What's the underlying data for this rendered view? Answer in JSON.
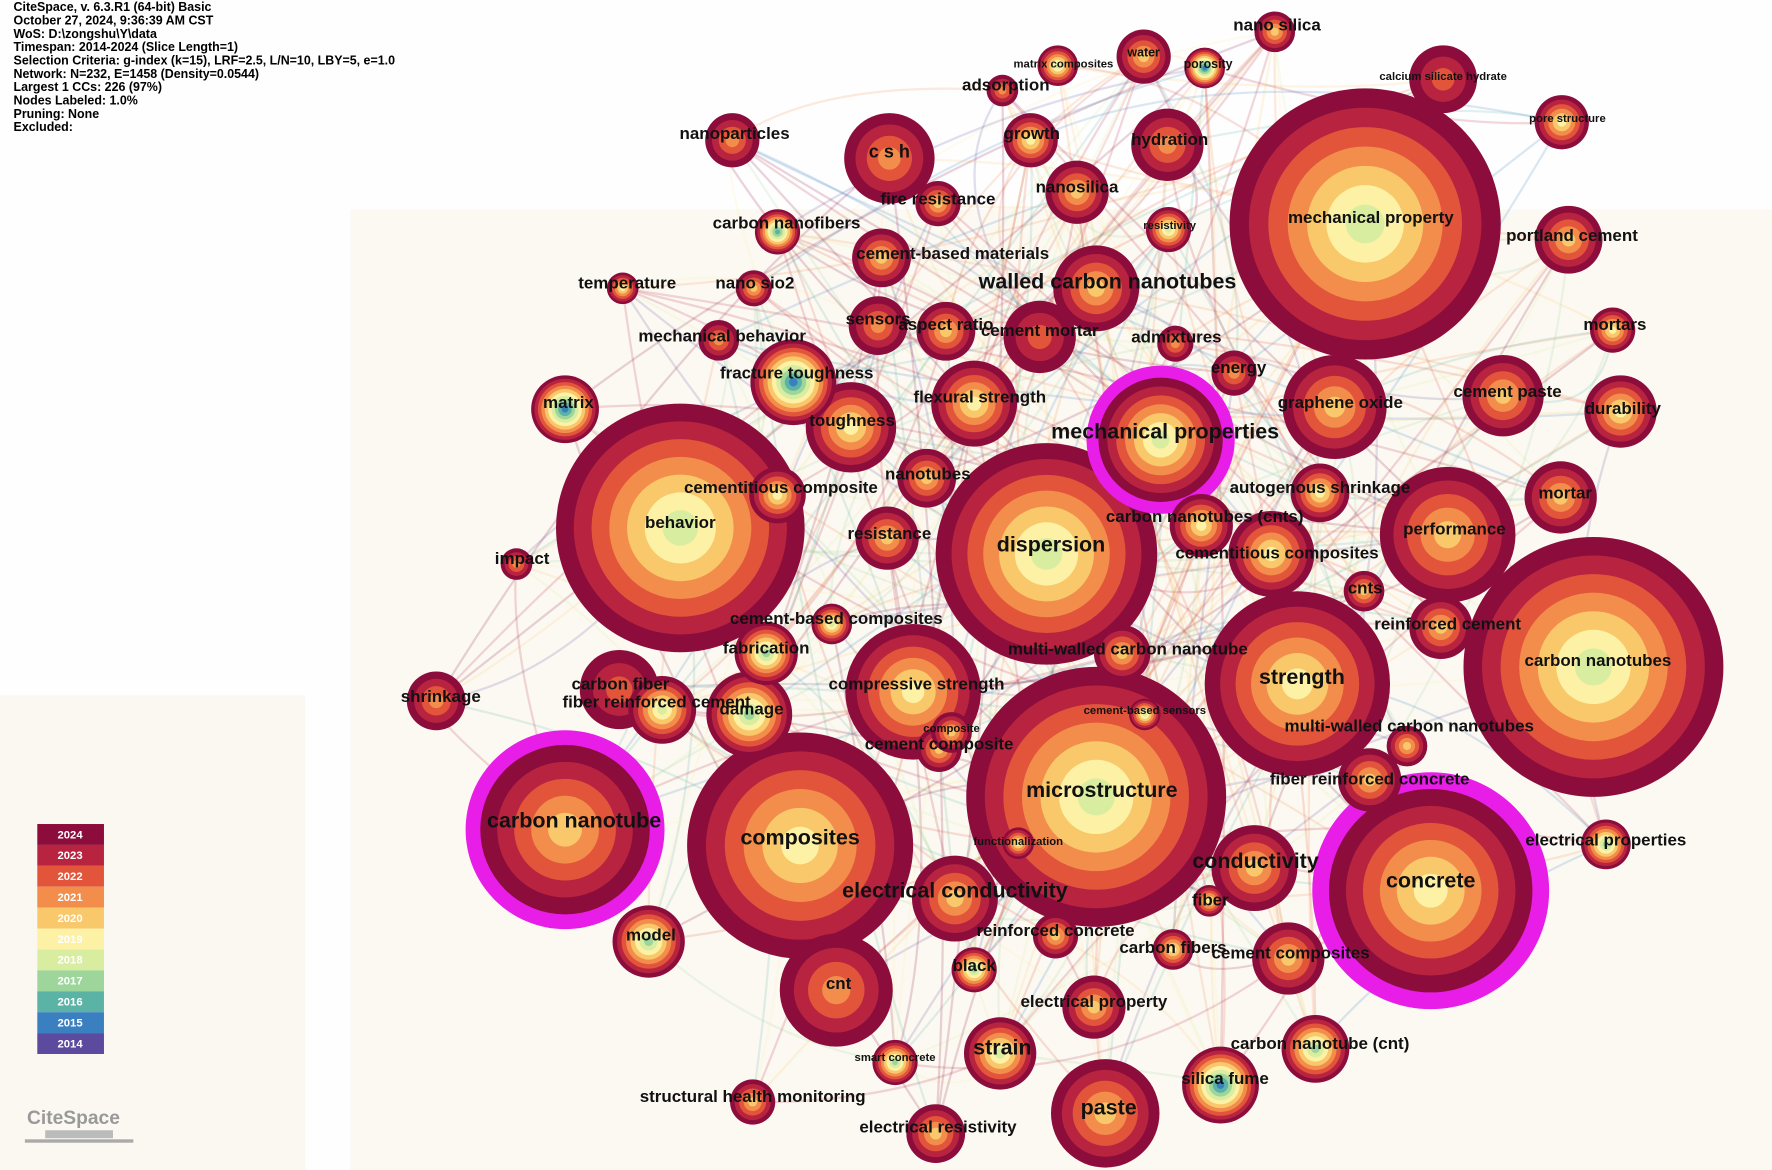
{
  "header": {
    "lines": [
      "CiteSpace, v. 6.3.R1 (64-bit) Basic",
      "October 27, 2024, 9:36:39 AM CST",
      "WoS: D:\\zongshu\\Y\\data",
      "Timespan: 2014-2024 (Slice Length=1)",
      "Selection Criteria: g-index (k=15), LRF=2.5, L/N=10, LBY=5, e=1.0",
      "Network: N=232, E=1458 (Density=0.0544)",
      "Largest 1 CCs: 226 (97%)",
      "Nodes Labeled: 1.0%",
      "Pruning: None",
      "Excluded:"
    ]
  },
  "legend": [
    {
      "year": "2024",
      "color": "#8c0d3c"
    },
    {
      "year": "2023",
      "color": "#b8243f"
    },
    {
      "year": "2022",
      "color": "#e2553a"
    },
    {
      "year": "2021",
      "color": "#f28d4c"
    },
    {
      "year": "2020",
      "color": "#f9c86b"
    },
    {
      "year": "2019",
      "color": "#fdf1a6"
    },
    {
      "year": "2018",
      "color": "#d9eda0"
    },
    {
      "year": "2017",
      "color": "#9dd59b"
    },
    {
      "year": "2016",
      "color": "#5bb3a5"
    },
    {
      "year": "2015",
      "color": "#3a7fc0"
    },
    {
      "year": "2014",
      "color": "#5b4a9e"
    }
  ],
  "logo": "CiteSpace",
  "nodes": [
    {
      "label": "nano silica"
    },
    {
      "label": "water"
    },
    {
      "label": "porosity"
    },
    {
      "label": "matrix composites"
    },
    {
      "label": "calcium silicate hydrate"
    },
    {
      "label": "adsorption"
    },
    {
      "label": "pore structure"
    },
    {
      "label": "nanoparticles"
    },
    {
      "label": "c s h"
    },
    {
      "label": "growth"
    },
    {
      "label": "hydration"
    },
    {
      "label": "mechanical property"
    },
    {
      "label": "fire resistance"
    },
    {
      "label": "nanosilica"
    },
    {
      "label": "carbon nanofibers"
    },
    {
      "label": "resistivity"
    },
    {
      "label": "portland cement"
    },
    {
      "label": "cement-based materials"
    },
    {
      "label": "walled carbon nanotubes"
    },
    {
      "label": "temperature"
    },
    {
      "label": "nano sio2"
    },
    {
      "label": "sensors"
    },
    {
      "label": "aspect ratio"
    },
    {
      "label": "cement mortar"
    },
    {
      "label": "admixtures"
    },
    {
      "label": "mortars"
    },
    {
      "label": "mechanical behavior"
    },
    {
      "label": "fracture toughness"
    },
    {
      "label": "energy"
    },
    {
      "label": "matrix"
    },
    {
      "label": "flexural strength"
    },
    {
      "label": "graphene oxide"
    },
    {
      "label": "cement paste"
    },
    {
      "label": "durability"
    },
    {
      "label": "mechanical properties"
    },
    {
      "label": "toughness"
    },
    {
      "label": "cementitious composite"
    },
    {
      "label": "behavior"
    },
    {
      "label": "nanotubes"
    },
    {
      "label": "autogenous shrinkage"
    },
    {
      "label": "mortar"
    },
    {
      "label": "carbon nanotubes (cnts)"
    },
    {
      "label": "performance"
    },
    {
      "label": "dispersion"
    },
    {
      "label": "resistance"
    },
    {
      "label": "impact"
    },
    {
      "label": "cementitious composites"
    },
    {
      "label": "cnts"
    },
    {
      "label": "carbon nanotubes"
    },
    {
      "label": "cement-based composites"
    },
    {
      "label": "reinforced cement"
    },
    {
      "label": "fabrication"
    },
    {
      "label": "multi-walled carbon nanotube"
    },
    {
      "label": "strength"
    },
    {
      "label": "shrinkage"
    },
    {
      "label": "carbon fiber"
    },
    {
      "label": "fiber reinforced cement"
    },
    {
      "label": "damage"
    },
    {
      "label": "compressive strength"
    },
    {
      "label": "composite"
    },
    {
      "label": "cement composite"
    },
    {
      "label": "cement-based sensors"
    },
    {
      "label": "multi-walled carbon nanotubes"
    },
    {
      "label": "microstructure"
    },
    {
      "label": "fiber reinforced concrete"
    },
    {
      "label": "carbon nanotube"
    },
    {
      "label": "composites"
    },
    {
      "label": "functionalization"
    },
    {
      "label": "electrical properties"
    },
    {
      "label": "conductivity"
    },
    {
      "label": "concrete"
    },
    {
      "label": "electrical conductivity"
    },
    {
      "label": "fiber"
    },
    {
      "label": "model"
    },
    {
      "label": "reinforced concrete"
    },
    {
      "label": "carbon fibers"
    },
    {
      "label": "cement composites"
    },
    {
      "label": "black"
    },
    {
      "label": "cnt"
    },
    {
      "label": "electrical property"
    },
    {
      "label": "strain"
    },
    {
      "label": "smart concrete"
    },
    {
      "label": "carbon nanotube (cnt)"
    },
    {
      "label": "silica fume"
    },
    {
      "label": "structural health monitoring"
    },
    {
      "label": "paste"
    },
    {
      "label": "electrical resistivity"
    }
  ]
}
